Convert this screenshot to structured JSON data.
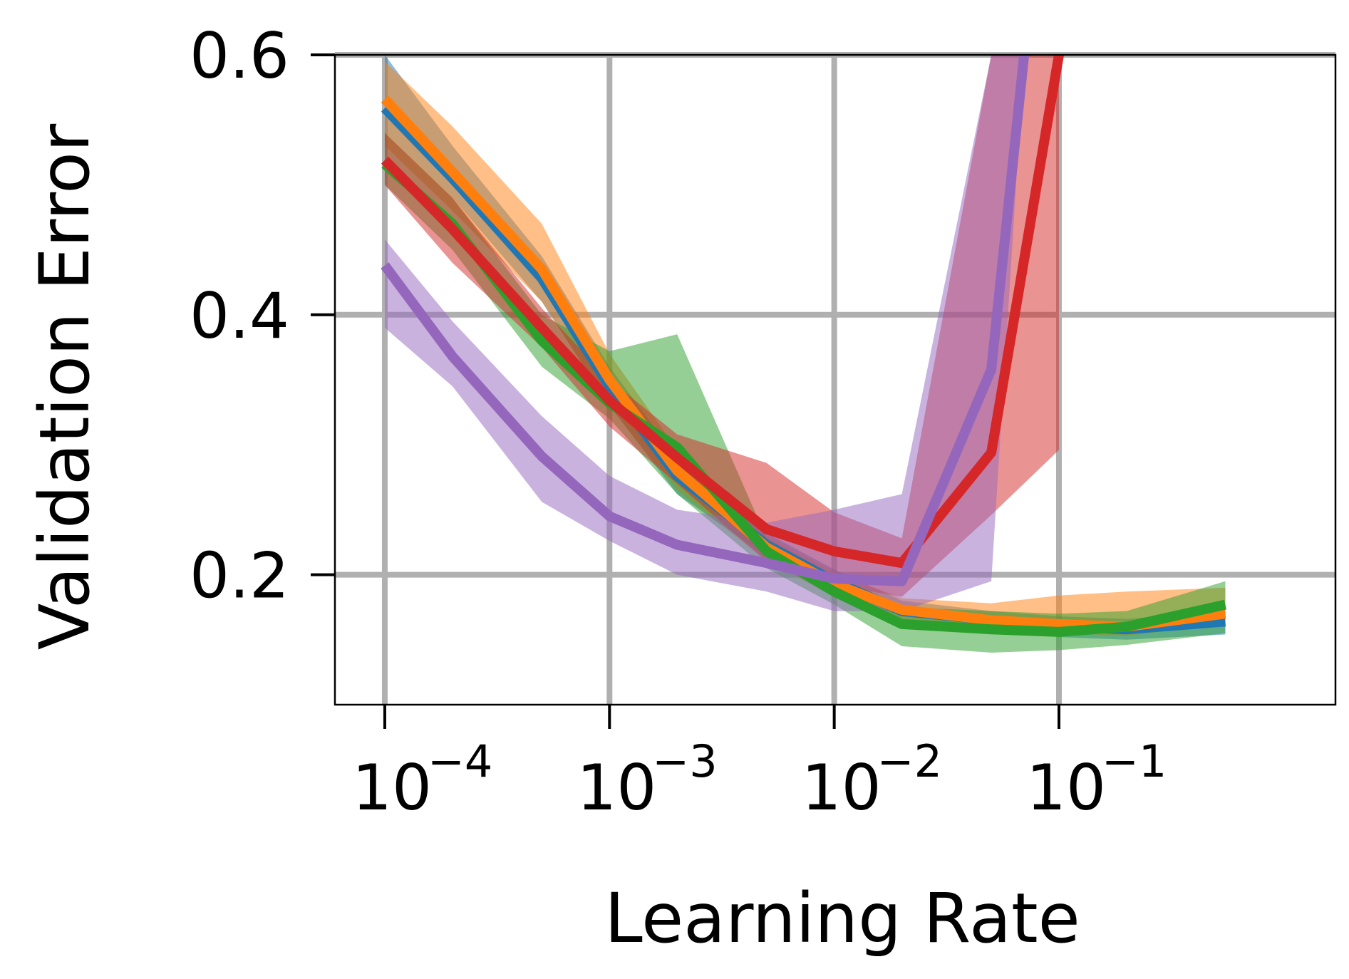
{
  "chart_data": {
    "type": "line",
    "xlabel": "Learning Rate",
    "ylabel": "Validation Error",
    "xscale": "log",
    "xlim": [
      6e-05,
      1.7
    ],
    "ylim": [
      0.1,
      0.6
    ],
    "grid": true,
    "xticks": [
      {
        "value": 0.0001,
        "base": "10",
        "exp": "−4"
      },
      {
        "value": 0.001,
        "base": "10",
        "exp": "−3"
      },
      {
        "value": 0.01,
        "base": "10",
        "exp": "−2"
      },
      {
        "value": 0.1,
        "base": "10",
        "exp": "−1"
      }
    ],
    "yticks": [
      {
        "value": 0.2,
        "label": "0.2"
      },
      {
        "value": 0.4,
        "label": "0.4"
      },
      {
        "value": 0.6,
        "label": "0.6"
      }
    ],
    "series": [
      {
        "color": "#1f77b4",
        "x": [
          0.0001,
          0.0002,
          0.0005,
          0.001,
          0.002,
          0.005,
          0.01,
          0.02,
          0.05,
          0.1,
          0.2,
          0.55
        ],
        "y": [
          0.559,
          0.505,
          0.428,
          0.345,
          0.276,
          0.223,
          0.195,
          0.172,
          0.165,
          0.16,
          0.158,
          0.164
        ],
        "lower": [
          0.54,
          0.49,
          0.41,
          0.33,
          0.262,
          0.214,
          0.186,
          0.164,
          0.158,
          0.152,
          0.15,
          0.154
        ],
        "upper": [
          0.6,
          0.53,
          0.445,
          0.36,
          0.29,
          0.232,
          0.204,
          0.18,
          0.172,
          0.168,
          0.166,
          0.172
        ]
      },
      {
        "color": "#ff7f0e",
        "x": [
          0.0001,
          0.0002,
          0.0005,
          0.001,
          0.002,
          0.005,
          0.01,
          0.02,
          0.05,
          0.1,
          0.2,
          0.55
        ],
        "y": [
          0.566,
          0.51,
          0.435,
          0.35,
          0.28,
          0.221,
          0.193,
          0.173,
          0.165,
          0.162,
          0.16,
          0.17
        ],
        "lower": [
          0.53,
          0.48,
          0.41,
          0.33,
          0.265,
          0.211,
          0.183,
          0.165,
          0.157,
          0.155,
          0.153,
          0.162
        ],
        "upper": [
          0.595,
          0.545,
          0.47,
          0.37,
          0.296,
          0.23,
          0.202,
          0.182,
          0.178,
          0.184,
          0.187,
          0.19
        ]
      },
      {
        "color": "#2ca02c",
        "x": [
          0.0001,
          0.0002,
          0.0005,
          0.001,
          0.002,
          0.005,
          0.01,
          0.02,
          0.05,
          0.1,
          0.2,
          0.55
        ],
        "y": [
          0.516,
          0.47,
          0.38,
          0.332,
          0.298,
          0.218,
          0.187,
          0.162,
          0.158,
          0.156,
          0.16,
          0.177
        ],
        "lower": [
          0.5,
          0.45,
          0.36,
          0.32,
          0.262,
          0.205,
          0.177,
          0.145,
          0.14,
          0.142,
          0.146,
          0.155
        ],
        "upper": [
          0.54,
          0.49,
          0.4,
          0.372,
          0.385,
          0.228,
          0.198,
          0.175,
          0.172,
          0.17,
          0.172,
          0.195
        ]
      },
      {
        "color": "#d62728",
        "x": [
          0.0001,
          0.0002,
          0.0005,
          0.001,
          0.002,
          0.005,
          0.01,
          0.02,
          0.05,
          0.1
        ],
        "y": [
          0.519,
          0.466,
          0.39,
          0.334,
          0.29,
          0.235,
          0.218,
          0.209,
          0.294,
          0.6
        ],
        "lower": [
          0.5,
          0.44,
          0.375,
          0.314,
          0.27,
          0.21,
          0.192,
          0.183,
          0.246,
          0.296
        ],
        "upper": [
          0.54,
          0.49,
          0.405,
          0.35,
          0.308,
          0.286,
          0.248,
          0.228,
          0.6,
          0.6
        ]
      },
      {
        "color": "#9467bd",
        "x": [
          0.0001,
          0.0002,
          0.0005,
          0.001,
          0.002,
          0.005,
          0.01,
          0.02,
          0.05,
          0.07
        ],
        "y": [
          0.438,
          0.368,
          0.291,
          0.245,
          0.223,
          0.209,
          0.197,
          0.195,
          0.358,
          0.6
        ],
        "lower": [
          0.39,
          0.345,
          0.256,
          0.226,
          0.2,
          0.187,
          0.172,
          0.172,
          0.195,
          0.6
        ],
        "upper": [
          0.458,
          0.395,
          0.322,
          0.276,
          0.25,
          0.24,
          0.25,
          0.262,
          0.6,
          0.6
        ]
      }
    ]
  }
}
